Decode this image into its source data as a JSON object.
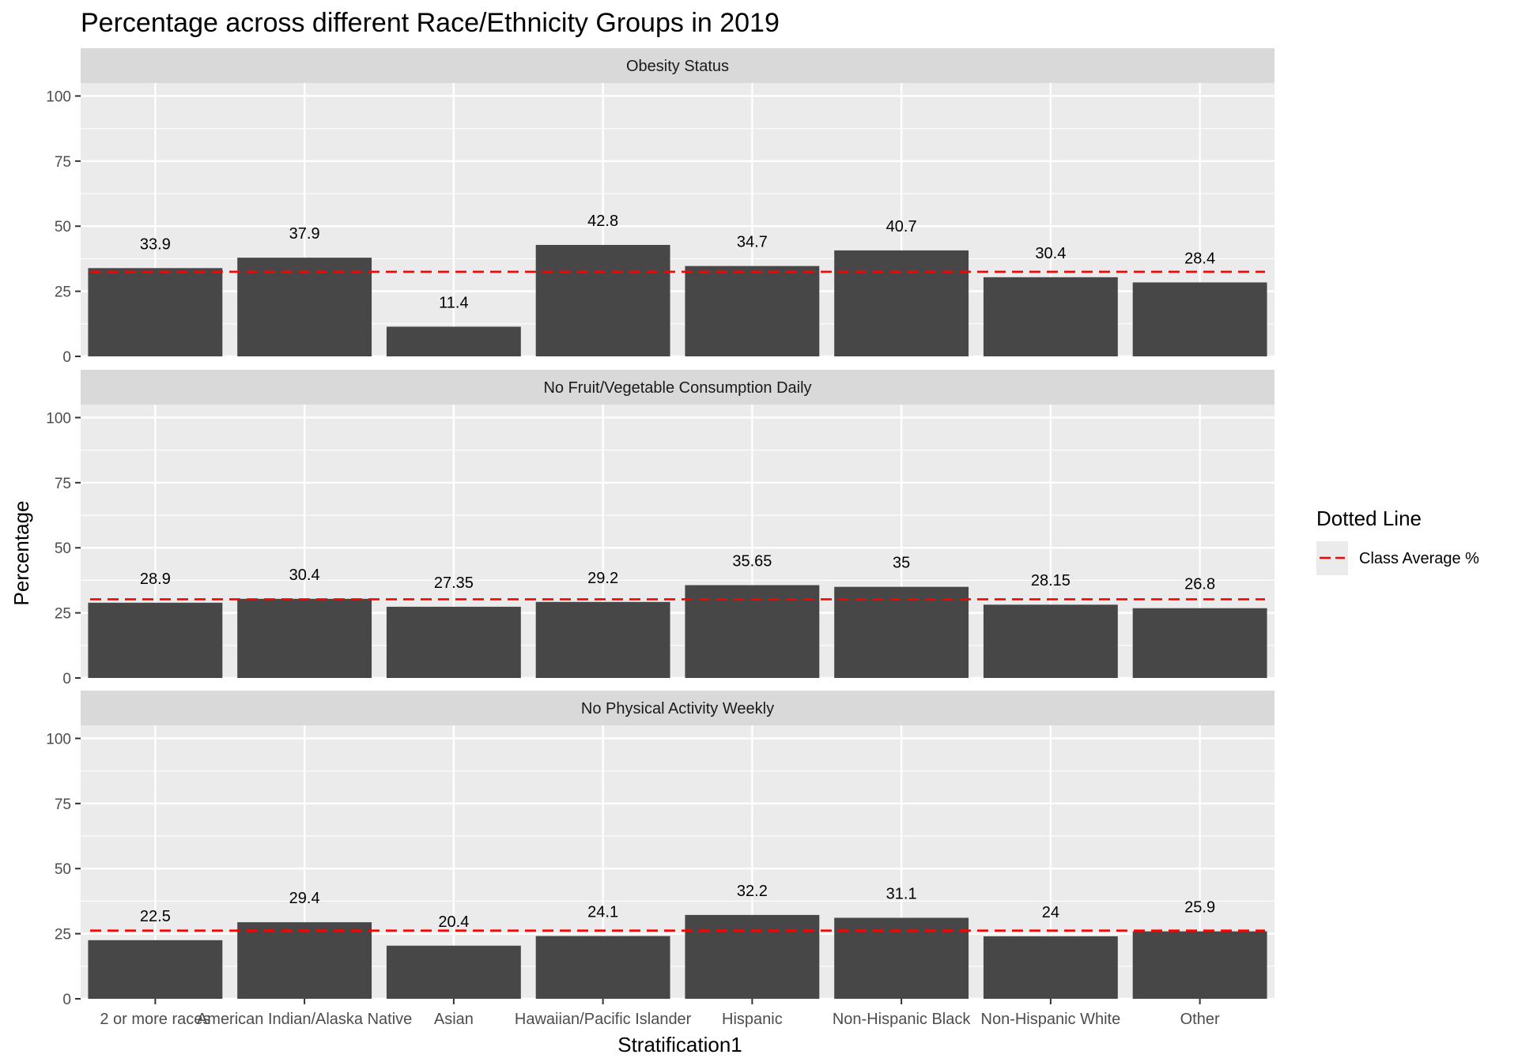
{
  "chart_data": {
    "type": "bar",
    "title": "Percentage across different Race/Ethnicity Groups in 2019",
    "xlabel": "Stratification1",
    "ylabel": "Percentage",
    "ylim": [
      0,
      105
    ],
    "yticks": [
      0,
      25,
      50,
      75,
      100
    ],
    "grid": true,
    "categories": [
      "2 or more races",
      "American Indian/Alaska Native",
      "Asian",
      "Hawaiian/Pacific Islander",
      "Hispanic",
      "Non-Hispanic Black",
      "Non-Hispanic White",
      "Other"
    ],
    "facets": [
      {
        "name": "Obesity Status",
        "values": [
          33.9,
          37.9,
          11.4,
          42.8,
          34.7,
          40.7,
          30.4,
          28.4
        ],
        "labels": [
          "33.9",
          "37.9",
          "11.4",
          "42.8",
          "34.7",
          "40.7",
          "30.4",
          "28.4"
        ],
        "average": 32.5
      },
      {
        "name": "No Fruit/Vegetable Consumption Daily",
        "values": [
          28.9,
          30.4,
          27.35,
          29.2,
          35.65,
          35,
          28.15,
          26.8
        ],
        "labels": [
          "28.9",
          "30.4",
          "27.35",
          "29.2",
          "35.65",
          "35",
          "28.15",
          "26.8"
        ],
        "average": 30.2
      },
      {
        "name": "No Physical Activity Weekly",
        "values": [
          22.5,
          29.4,
          20.4,
          24.1,
          32.2,
          31.1,
          24,
          25.9
        ],
        "labels": [
          "22.5",
          "29.4",
          "20.4",
          "24.1",
          "32.2",
          "31.1",
          "24",
          "25.9"
        ],
        "average": 26.2
      }
    ],
    "legend": {
      "title": "Dotted Line",
      "placement": "right",
      "entries": [
        {
          "label": "Class Average %",
          "color": "#ff0000",
          "style": "dashed"
        }
      ]
    },
    "colors": {
      "bar": "#474747",
      "average_line": "#ff0000",
      "panel": "#ebebeb",
      "strip": "#d9d9d9"
    }
  }
}
